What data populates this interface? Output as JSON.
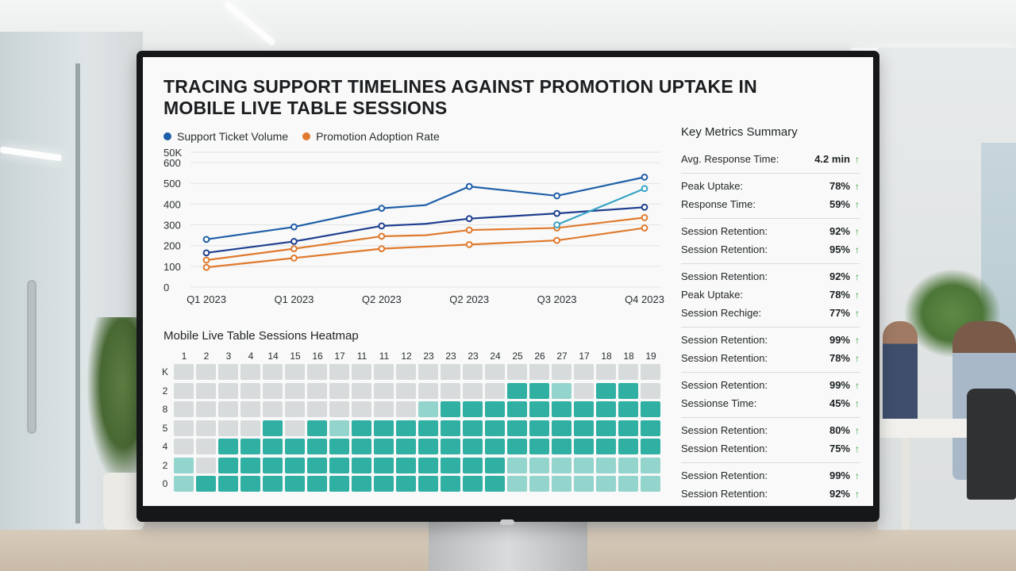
{
  "dashboard": {
    "title": "TRACING SUPPORT TIMELINES AGAINST PROMOTION UPTAKE IN MOBILE LIVE TABLE SESSIONS",
    "legend": [
      {
        "label": "Support Ticket Volume",
        "color": "#1f5fa8"
      },
      {
        "label": "Promotion Adoption Rate",
        "color": "#e07a2e"
      }
    ]
  },
  "chart_data": [
    {
      "type": "line",
      "x": [
        "Q1 2023",
        "Q1 2023",
        "Q2 2023",
        "Q2 2023",
        "Q3 2023",
        "Q4 2023"
      ],
      "y_ticks": [
        "50K",
        "600",
        "500",
        "400",
        "300",
        "200",
        "100",
        "0"
      ],
      "ylim": [
        0,
        650
      ],
      "grid": true,
      "legend_position": "top-left",
      "series": [
        {
          "name": "Support Ticket Volume",
          "color": "#1f5fa8",
          "points": [
            [
              0,
              230
            ],
            [
              1,
              290
            ],
            [
              2,
              380
            ],
            [
              2.5,
              395
            ],
            [
              3,
              485
            ],
            [
              4,
              440
            ],
            [
              5,
              530
            ]
          ]
        },
        {
          "name": "",
          "color": "#1f3f8f",
          "points": [
            [
              0,
              165
            ],
            [
              1,
              220
            ],
            [
              2,
              295
            ],
            [
              2.5,
              305
            ],
            [
              3,
              330
            ],
            [
              4,
              355
            ],
            [
              5,
              385
            ]
          ]
        },
        {
          "name": "Promotion Adoption Rate",
          "color": "#e07a2e",
          "points": [
            [
              0,
              130
            ],
            [
              1,
              185
            ],
            [
              2,
              245
            ],
            [
              2.5,
              250
            ],
            [
              3,
              275
            ],
            [
              4,
              285
            ],
            [
              5,
              335
            ]
          ]
        },
        {
          "name": "",
          "color": "#e07a2e",
          "points": [
            [
              0,
              95
            ],
            [
              1,
              140
            ],
            [
              2,
              185
            ],
            [
              3,
              205
            ],
            [
              4,
              225
            ],
            [
              5,
              285
            ]
          ]
        },
        {
          "name": "",
          "color": "#3aa4c6",
          "points": [
            [
              4,
              300
            ],
            [
              5,
              475
            ]
          ]
        }
      ]
    },
    {
      "type": "heatmap",
      "title": "Mobile Live Table Sessions Heatmap",
      "columns": [
        "1",
        "2",
        "3",
        "4",
        "14",
        "15",
        "16",
        "17",
        "11",
        "11",
        "12",
        "23",
        "23",
        "23",
        "24",
        "25",
        "26",
        "27",
        "17",
        "18",
        "18",
        "19"
      ],
      "rows": [
        "K",
        "2",
        "8",
        "5",
        "4",
        "2",
        "0"
      ],
      "colors": {
        "0": "#d7dbdc",
        "1": "#93d4cc",
        "2": "#2fb0a3"
      },
      "levels": [
        [
          0,
          0,
          0,
          0,
          0,
          0,
          0,
          0,
          0,
          0,
          0,
          0,
          0,
          0,
          0,
          0,
          0,
          0,
          0,
          0,
          0,
          0
        ],
        [
          0,
          0,
          0,
          0,
          0,
          0,
          0,
          0,
          0,
          0,
          0,
          0,
          0,
          0,
          0,
          2,
          2,
          1,
          0,
          2,
          2,
          0
        ],
        [
          0,
          0,
          0,
          0,
          0,
          0,
          0,
          0,
          0,
          0,
          0,
          1,
          2,
          2,
          2,
          2,
          2,
          2,
          2,
          2,
          2,
          2
        ],
        [
          0,
          0,
          0,
          0,
          2,
          0,
          2,
          1,
          2,
          2,
          2,
          2,
          2,
          2,
          2,
          2,
          2,
          2,
          2,
          2,
          2,
          2
        ],
        [
          0,
          0,
          2,
          2,
          2,
          2,
          2,
          2,
          2,
          2,
          2,
          2,
          2,
          2,
          2,
          2,
          2,
          2,
          2,
          2,
          2,
          2
        ],
        [
          1,
          0,
          2,
          2,
          2,
          2,
          2,
          2,
          2,
          2,
          2,
          2,
          2,
          2,
          2,
          1,
          1,
          1,
          1,
          1,
          1,
          1
        ],
        [
          1,
          2,
          2,
          2,
          2,
          2,
          2,
          2,
          2,
          2,
          2,
          2,
          2,
          2,
          2,
          1,
          1,
          1,
          1,
          1,
          1,
          1
        ]
      ]
    }
  ],
  "metrics": {
    "title": "Key Metrics Summary",
    "groups": [
      [
        {
          "label": "Avg. Response Time:",
          "value": "4.2 min"
        }
      ],
      [
        {
          "label": "Peak Uptake:",
          "value": "78%"
        },
        {
          "label": "Response Time:",
          "value": "59%"
        }
      ],
      [
        {
          "label": "Session Retention:",
          "value": "92%"
        },
        {
          "label": "Session Retention:",
          "value": "95%"
        }
      ],
      [
        {
          "label": "Session Retention:",
          "value": "92%"
        },
        {
          "label": "Peak Uptake:",
          "value": "78%"
        },
        {
          "label": "Session Rechige:",
          "value": "77%"
        }
      ],
      [
        {
          "label": "Session Retention:",
          "value": "99%"
        },
        {
          "label": "Session Retention:",
          "value": "78%"
        }
      ],
      [
        {
          "label": "Session Retention:",
          "value": "99%"
        },
        {
          "label": "Sessionse Time:",
          "value": "45%"
        }
      ],
      [
        {
          "label": "Session Retention:",
          "value": "80%"
        },
        {
          "label": "Session Retention:",
          "value": "75%"
        }
      ],
      [
        {
          "label": "Session Retention:",
          "value": "99%"
        },
        {
          "label": "Session Retention:",
          "value": "92%"
        }
      ]
    ],
    "trend_icon": "arrow-up-icon",
    "trend_color": "#2f9a3a"
  }
}
